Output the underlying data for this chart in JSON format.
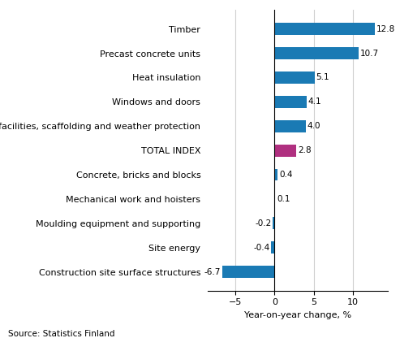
{
  "categories": [
    "Construction site surface structures",
    "Site energy",
    "Moulding equipment and supporting",
    "Mechanical work and hoisters",
    "Concrete, bricks and blocks",
    "TOTAL INDEX",
    "Site facilities, scaffolding and weather protection",
    "Windows and doors",
    "Heat insulation",
    "Precast concrete units",
    "Timber"
  ],
  "values": [
    -6.7,
    -0.4,
    -0.2,
    0.1,
    0.4,
    2.8,
    4.0,
    4.1,
    5.1,
    10.7,
    12.8
  ],
  "bar_colors": [
    "#1a7ab4",
    "#1a7ab4",
    "#1a7ab4",
    "#1a7ab4",
    "#1a7ab4",
    "#b03080",
    "#1a7ab4",
    "#1a7ab4",
    "#1a7ab4",
    "#1a7ab4",
    "#1a7ab4"
  ],
  "xlabel": "Year-on-year change, %",
  "xlim": [
    -8.5,
    14.5
  ],
  "xticks": [
    -5,
    0,
    5,
    10
  ],
  "source": "Source: Statistics Finland",
  "value_label_fontsize": 7.5,
  "xlabel_fontsize": 8,
  "category_fontsize": 8,
  "bar_height": 0.5,
  "grid_color": "#d0d0d0",
  "bg_color": "#ffffff"
}
